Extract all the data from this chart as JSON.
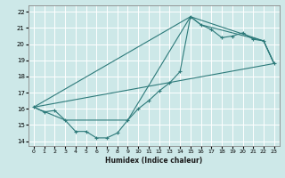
{
  "title": "",
  "xlabel": "Humidex (Indice chaleur)",
  "bg_color": "#cde8e8",
  "line_color": "#2d7a7a",
  "grid_color": "#b0d0d0",
  "xlim": [
    -0.5,
    23.5
  ],
  "ylim": [
    13.7,
    22.4
  ],
  "xticks": [
    0,
    1,
    2,
    3,
    4,
    5,
    6,
    7,
    8,
    9,
    10,
    11,
    12,
    13,
    14,
    15,
    16,
    17,
    18,
    19,
    20,
    21,
    22,
    23
  ],
  "yticks": [
    14,
    15,
    16,
    17,
    18,
    19,
    20,
    21,
    22
  ],
  "line_main": {
    "x": [
      0,
      1,
      2,
      3,
      4,
      5,
      6,
      7,
      8,
      9,
      10,
      11,
      12,
      13,
      14,
      15,
      16,
      17,
      18,
      19,
      20,
      21,
      22,
      23
    ],
    "y": [
      16.1,
      15.8,
      15.9,
      15.3,
      14.6,
      14.6,
      14.2,
      14.2,
      14.5,
      15.3,
      16.0,
      16.5,
      17.1,
      17.6,
      18.3,
      21.7,
      21.2,
      20.9,
      20.4,
      20.5,
      20.7,
      20.3,
      20.2,
      18.8
    ]
  },
  "line_straight": {
    "x": [
      0,
      23
    ],
    "y": [
      16.1,
      18.8
    ]
  },
  "line_env1": {
    "x": [
      0,
      15,
      22,
      23
    ],
    "y": [
      16.1,
      21.7,
      20.2,
      18.8
    ]
  },
  "line_env2": {
    "x": [
      0,
      3,
      9,
      15,
      16,
      22,
      23
    ],
    "y": [
      16.1,
      15.3,
      15.3,
      21.7,
      21.2,
      20.2,
      18.8
    ]
  }
}
